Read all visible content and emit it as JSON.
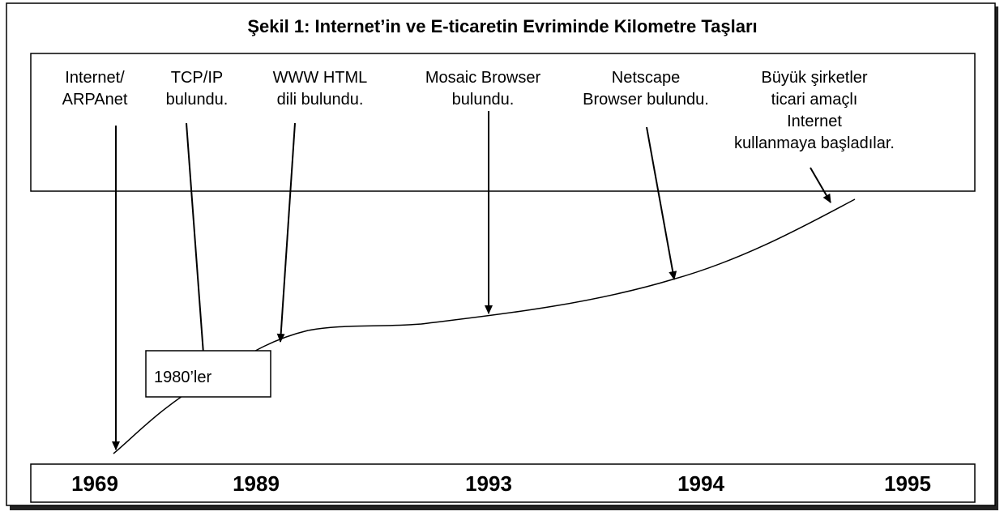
{
  "title": "Şekil 1: Internet’in ve E-ticaretin Evriminde Kilometre Taşları",
  "milestones": [
    {
      "lines": [
        "Internet/",
        "ARPAnet"
      ]
    },
    {
      "lines": [
        "TCP/IP",
        "bulundu."
      ]
    },
    {
      "lines": [
        "WWW HTML",
        "dili bulundu."
      ]
    },
    {
      "lines": [
        "Mosaic Browser",
        "bulundu."
      ]
    },
    {
      "lines": [
        "Netscape",
        "Browser bulundu."
      ]
    },
    {
      "lines": [
        "Büyük şirketler",
        "ticari amaçlı",
        "Internet",
        "kullanmaya başladılar."
      ]
    }
  ],
  "note": "1980’ler",
  "years": [
    "1969",
    "1989",
    "1993",
    "1994",
    "1995"
  ]
}
